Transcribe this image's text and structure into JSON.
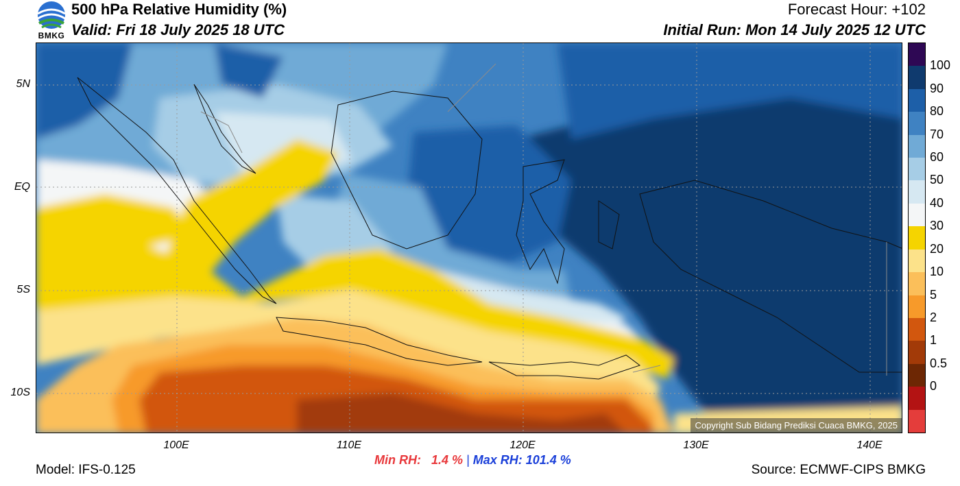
{
  "header": {
    "title": "500 hPa Relative Humidity (%)",
    "valid": "Valid: Fri 18 July 2025 18 UTC",
    "forecast_hour": "Forecast Hour: +102",
    "initial_run": "Initial Run: Mon 14 July 2025 12 UTC",
    "logo_text": "BMKG"
  },
  "map": {
    "lat_labels": [
      "5N",
      "EQ",
      "5S",
      "10S"
    ],
    "lon_labels": [
      "100E",
      "110E",
      "120E",
      "130E",
      "140E"
    ],
    "copyright": "Copyright Sub Bidang Prediksi Cuaca BMKG, 2025"
  },
  "colorbar": {
    "labels": [
      "100",
      "90",
      "80",
      "70",
      "60",
      "50",
      "40",
      "30",
      "20",
      "10",
      "5",
      "2",
      "1",
      "0.5",
      "0"
    ],
    "colors": [
      "#2e0854",
      "#0f3a6e",
      "#1d5fa8",
      "#3f82c2",
      "#70aad6",
      "#a6cde6",
      "#d6e8f2",
      "#f4f6f7",
      "#f5d400",
      "#fce28a",
      "#fbbf5a",
      "#f79a2a",
      "#d2570e",
      "#a23a08",
      "#6d2704",
      "#b31313",
      "#e43d3b"
    ]
  },
  "footer": {
    "min_rh": "Min RH:   1.4 %",
    "separator": " | ",
    "max_rh": "Max RH: 101.4 %",
    "model": "Model: IFS-0.125",
    "source": "Source: ECMWF-CIPS BMKG"
  }
}
